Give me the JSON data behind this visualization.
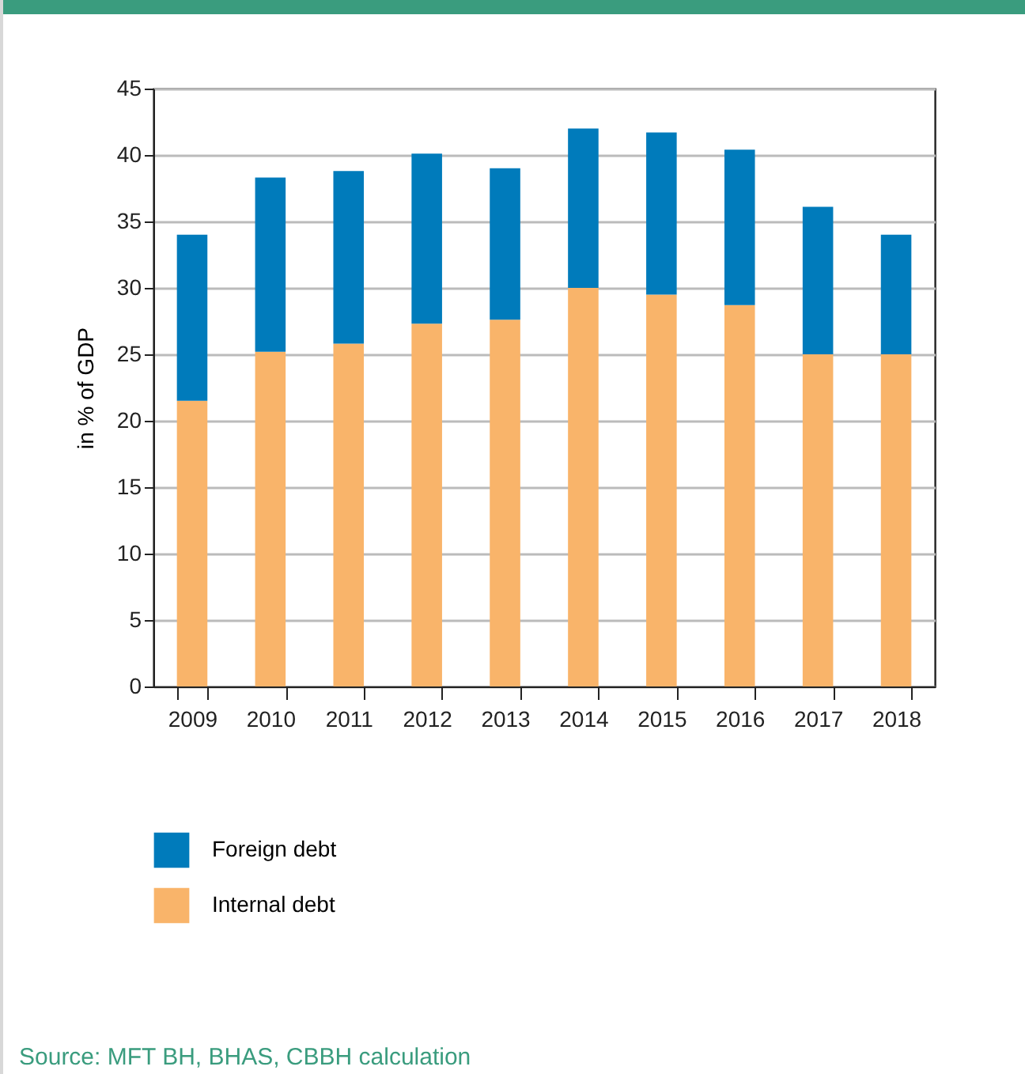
{
  "chart_data": {
    "type": "bar",
    "stacked": true,
    "ylabel": "in % of GDP",
    "categories": [
      "2009",
      "2010",
      "2011",
      "2012",
      "2013",
      "2014",
      "2015",
      "2016",
      "2017",
      "2018"
    ],
    "series": [
      {
        "name": "Internal debt",
        "color": "#f9b46a",
        "values": [
          21.5,
          25.2,
          25.8,
          27.3,
          27.6,
          30.0,
          29.5,
          28.7,
          25.0,
          25.0
        ]
      },
      {
        "name": "Foreign debt",
        "color": "#007bbb",
        "values": [
          12.5,
          13.1,
          13.0,
          12.8,
          11.4,
          12.0,
          12.2,
          11.7,
          11.1,
          9.0
        ]
      }
    ],
    "ylim": [
      0,
      45
    ],
    "yticks": [
      0,
      5,
      10,
      15,
      20,
      25,
      30,
      35,
      40,
      45
    ],
    "grid": "y",
    "legend": "bottom left",
    "annotations": [
      "Source: MFT BH, BHAS, CBBH calculation"
    ]
  }
}
